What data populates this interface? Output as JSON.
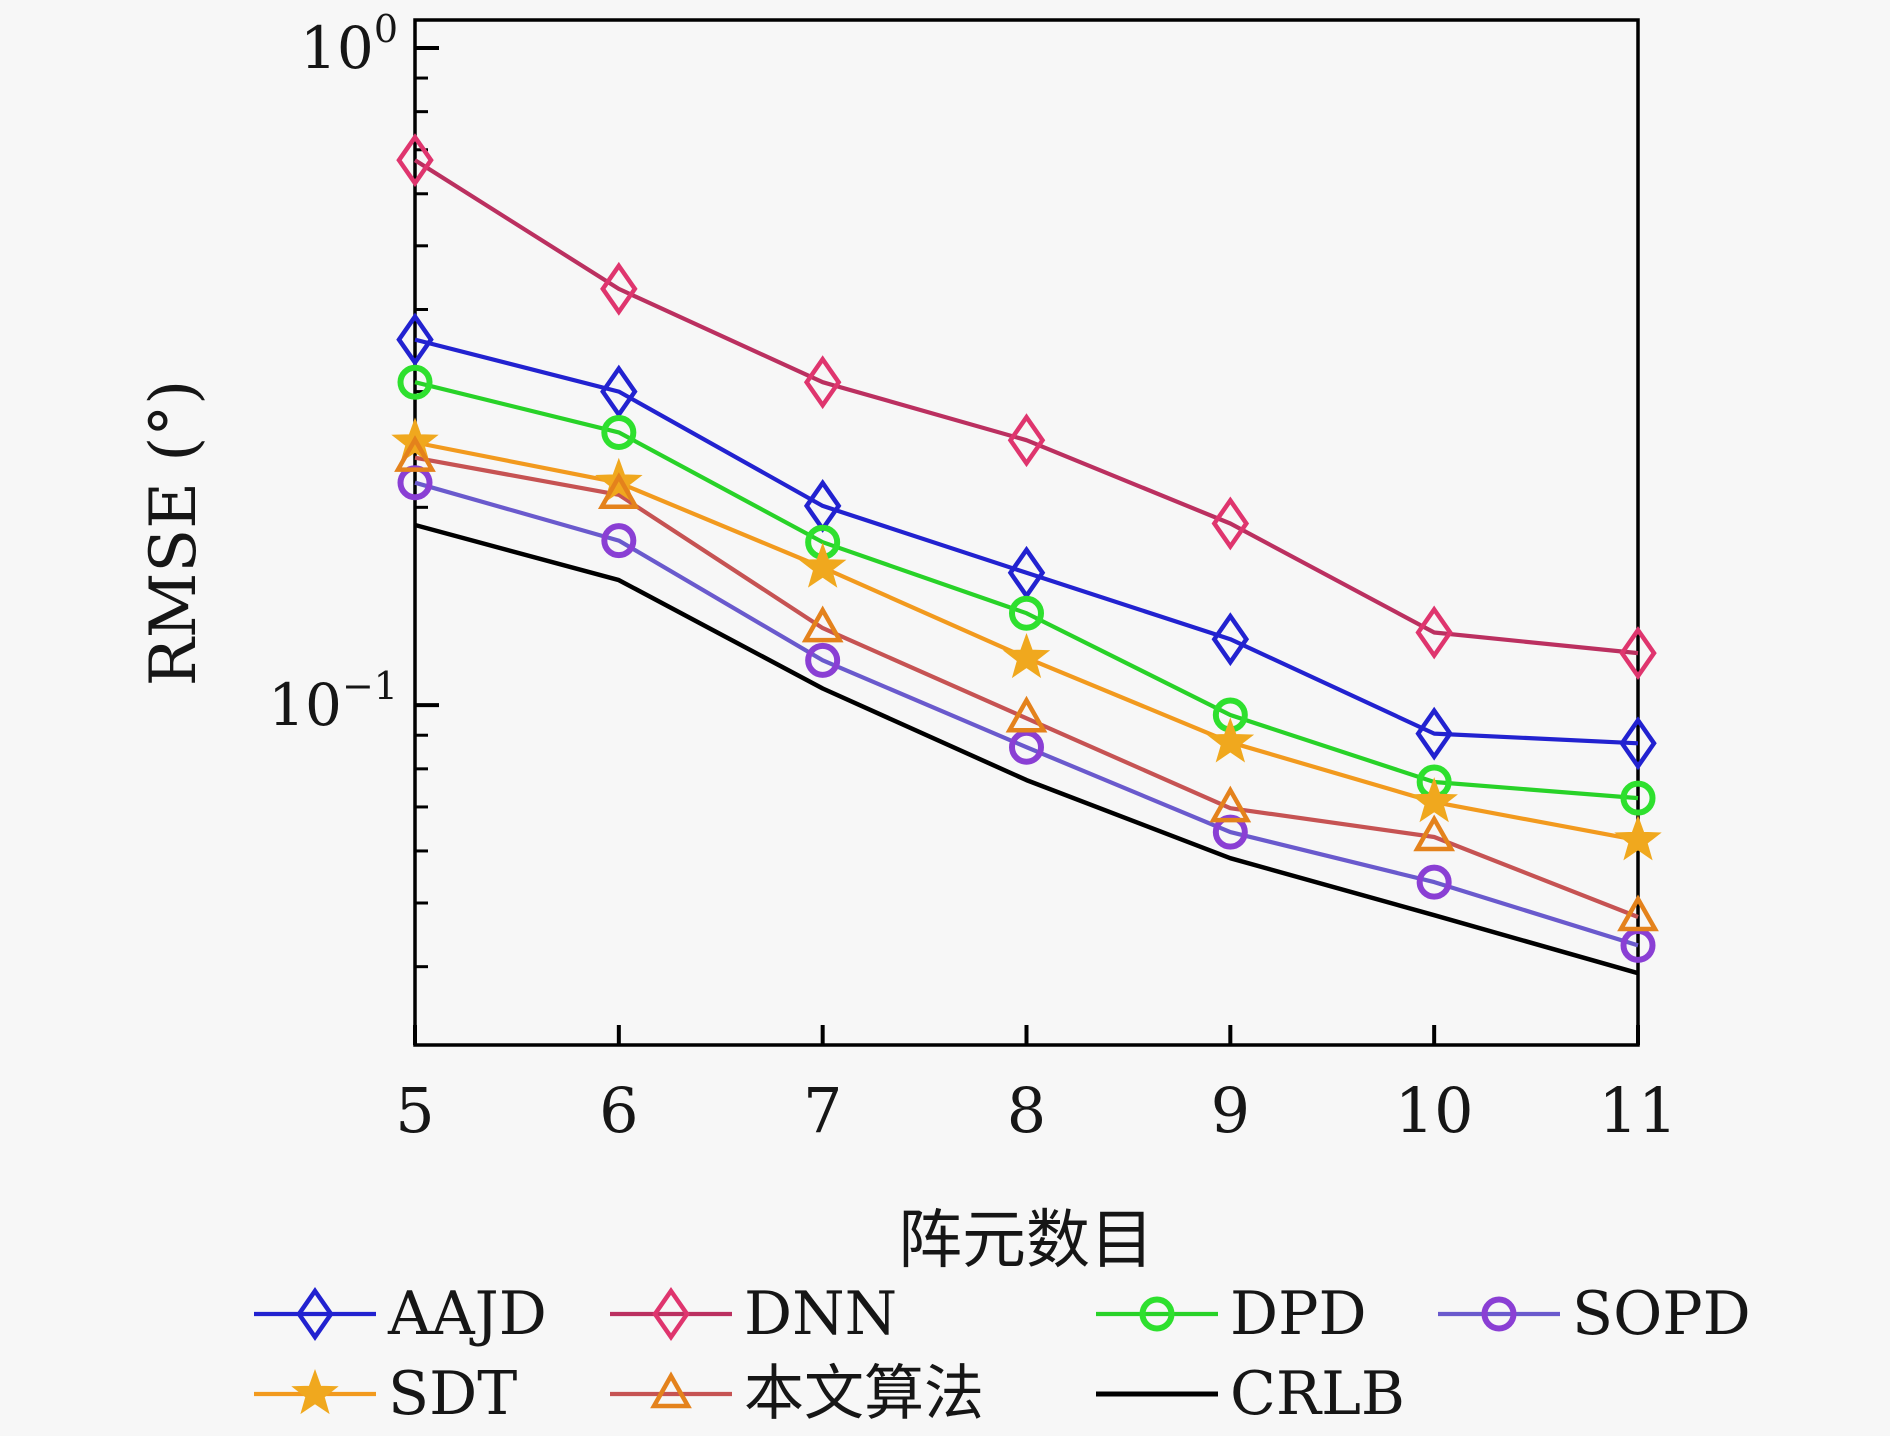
{
  "figure": {
    "background": "#f7f7f7",
    "text_color": "#161616"
  },
  "chart_data": {
    "type": "line",
    "xlabel": "阵元数目",
    "ylabel": "RMSE (°)",
    "x": [
      5,
      6,
      7,
      8,
      9,
      10,
      11
    ],
    "x_tick_labels": [
      "5",
      "6",
      "7",
      "8",
      "9",
      "10",
      "11"
    ],
    "y_scale": "log",
    "ylim": [
      0.0304,
      1.103
    ],
    "xlim": [
      5,
      11
    ],
    "grid": false,
    "legend_position": "below-axis",
    "y_major_ticks": [
      {
        "value": 1,
        "base": "10",
        "exp": "0"
      },
      {
        "value": 0.1,
        "base": "10",
        "exp": "−1"
      }
    ],
    "series": [
      {
        "name": "AAJD",
        "marker": "diamond",
        "line_color": "#2222d0",
        "marker_color": "#2222d0",
        "values": [
          0.36,
          0.3,
          0.201,
          0.159,
          0.126,
          0.0905,
          0.0875
        ]
      },
      {
        "name": "DNN",
        "marker": "diamond",
        "line_color": "#bb3060",
        "marker_color": "#df356e",
        "values": [
          0.675,
          0.43,
          0.31,
          0.253,
          0.189,
          0.129,
          0.12
        ]
      },
      {
        "name": "DPD",
        "marker": "circle",
        "line_color": "#28d228",
        "marker_color": "#2ee02e",
        "values": [
          0.31,
          0.26,
          0.177,
          0.138,
          0.0966,
          0.0764,
          0.0722
        ]
      },
      {
        "name": "SOPD",
        "marker": "circle",
        "line_color": "#6a5acd",
        "marker_color": "#8a3fd4",
        "values": [
          0.218,
          0.178,
          0.117,
          0.0863,
          0.0641,
          0.0538,
          0.0431
        ]
      },
      {
        "name": "SDT",
        "marker": "star",
        "line_color": "#f29a1e",
        "marker_color": "#f0a81e",
        "values": [
          0.251,
          0.218,
          0.162,
          0.118,
          0.0878,
          0.0712,
          0.0623
        ]
      },
      {
        "name": "本文算法",
        "marker": "triangle",
        "line_color": "#c65353",
        "marker_color": "#e4821c",
        "values": [
          0.238,
          0.209,
          0.131,
          0.0955,
          0.0697,
          0.063,
          0.0476
        ]
      },
      {
        "name": "CRLB",
        "marker": "none",
        "line_color": "#000000",
        "marker_color": "#000000",
        "values": [
          0.188,
          0.155,
          0.106,
          0.0769,
          0.0585,
          0.0479,
          0.0391
        ]
      }
    ]
  }
}
